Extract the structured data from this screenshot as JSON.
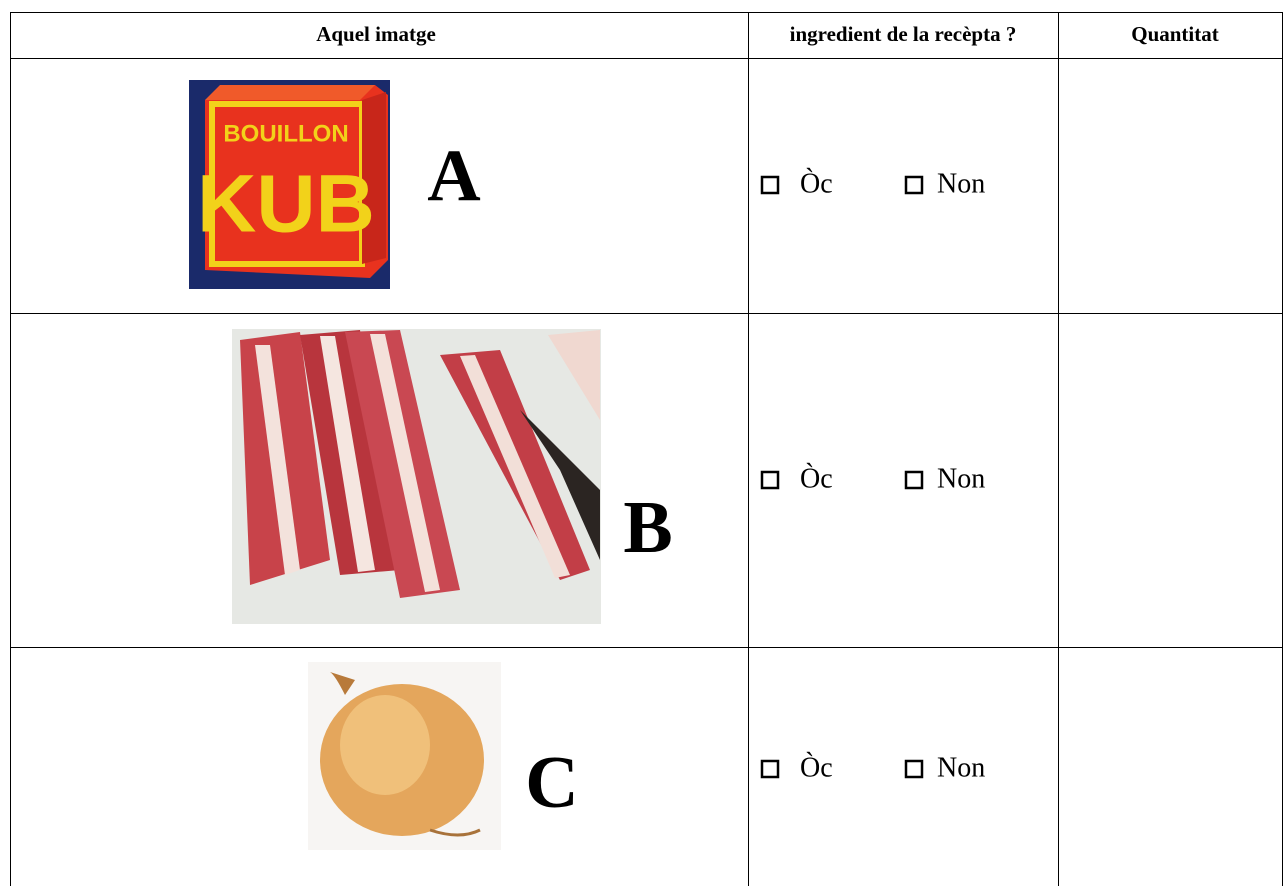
{
  "table": {
    "headers": [
      "Aquel imatge",
      "ingredient de la recèpta ?",
      "Quantitat"
    ],
    "rows": [
      {
        "letter": "A",
        "image_text": [
          "BOUILLON",
          "KUB"
        ],
        "options": [
          "Òc",
          "Non"
        ]
      },
      {
        "letter": "B",
        "options": [
          "Òc",
          "Non"
        ]
      },
      {
        "letter": "C",
        "options": [
          "Òc",
          "Non"
        ]
      }
    ]
  }
}
